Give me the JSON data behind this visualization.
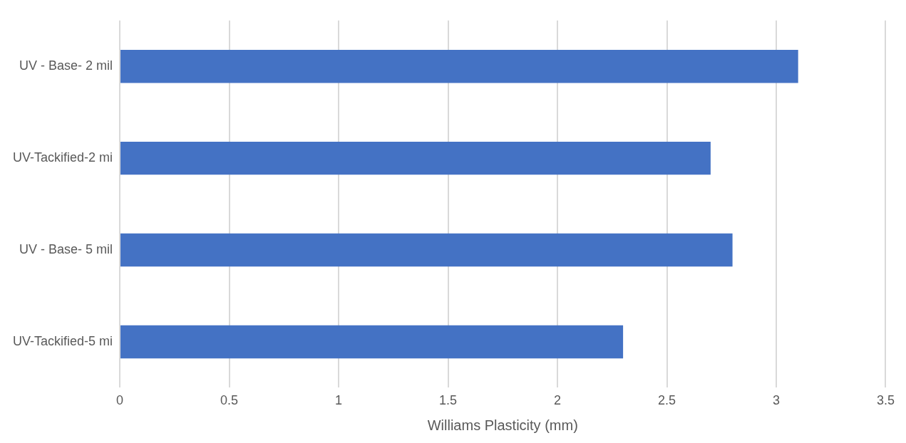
{
  "chart_data": {
    "type": "bar",
    "orientation": "horizontal",
    "xlabel": "Williams Plasticity (mm)",
    "categories": [
      "UV - Base- 2 mil",
      "UV-Tackified-2 mi",
      "UV - Base- 5 mil",
      "UV-Tackified-5 mi"
    ],
    "values": [
      3.1,
      2.7,
      2.8,
      2.3
    ],
    "color": "#4472c4",
    "xlim": [
      0,
      3.5
    ],
    "xticks": [
      0,
      0.5,
      1,
      1.5,
      2,
      2.5,
      3,
      3.5
    ],
    "grid": "x",
    "legend": false
  }
}
